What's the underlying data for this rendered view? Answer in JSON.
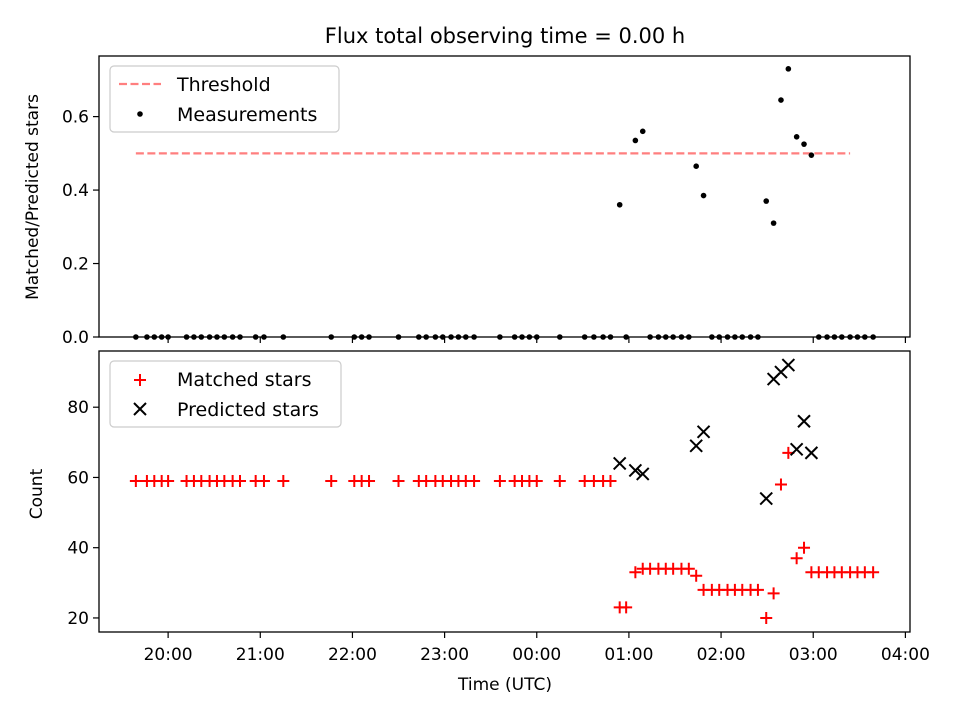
{
  "title": "Flux total observing time = 0.00 h",
  "colors": {
    "threshold": "#ff7f7f",
    "measurement": "#000000",
    "matched": "#ff0000",
    "predicted": "#000000"
  },
  "chart_data": [
    {
      "type": "scatter",
      "ylabel": "Matched/Predicted stars",
      "ylim": [
        0,
        0.765
      ],
      "yticks": [
        "0.0",
        "0.2",
        "0.4",
        "0.6"
      ],
      "legend_position": "upper-left",
      "threshold": {
        "name": "Threshold",
        "value": 0.5,
        "x_range": [
          -0.35,
          7.4
        ]
      },
      "series": [
        {
          "name": "Measurements",
          "marker": "dot",
          "points": [
            [
              -0.35,
              0
            ],
            [
              -0.23,
              0
            ],
            [
              -0.15,
              0
            ],
            [
              -0.07,
              0
            ],
            [
              0.0,
              0
            ],
            [
              0.2,
              0
            ],
            [
              0.28,
              0
            ],
            [
              0.36,
              0
            ],
            [
              0.45,
              0
            ],
            [
              0.53,
              0
            ],
            [
              0.61,
              0
            ],
            [
              0.7,
              0
            ],
            [
              0.78,
              0
            ],
            [
              0.95,
              0
            ],
            [
              1.04,
              0
            ],
            [
              1.25,
              0
            ],
            [
              1.77,
              0
            ],
            [
              2.02,
              0
            ],
            [
              2.1,
              0
            ],
            [
              2.18,
              0
            ],
            [
              2.5,
              0
            ],
            [
              2.72,
              0
            ],
            [
              2.8,
              0
            ],
            [
              2.9,
              0
            ],
            [
              2.98,
              0
            ],
            [
              3.07,
              0
            ],
            [
              3.15,
              0
            ],
            [
              3.23,
              0
            ],
            [
              3.32,
              0
            ],
            [
              3.6,
              0
            ],
            [
              3.76,
              0
            ],
            [
              3.84,
              0
            ],
            [
              3.92,
              0
            ],
            [
              4.0,
              0
            ],
            [
              4.25,
              0
            ],
            [
              4.52,
              0
            ],
            [
              4.62,
              0
            ],
            [
              4.72,
              0
            ],
            [
              4.8,
              0
            ],
            [
              4.9,
              0.36
            ],
            [
              4.97,
              0
            ],
            [
              5.07,
              0.535
            ],
            [
              5.15,
              0.56
            ],
            [
              5.23,
              0
            ],
            [
              5.32,
              0
            ],
            [
              5.4,
              0
            ],
            [
              5.48,
              0
            ],
            [
              5.57,
              0
            ],
            [
              5.65,
              0
            ],
            [
              5.73,
              0.465
            ],
            [
              5.81,
              0.385
            ],
            [
              5.9,
              0
            ],
            [
              5.98,
              0
            ],
            [
              6.07,
              0
            ],
            [
              6.15,
              0
            ],
            [
              6.23,
              0
            ],
            [
              6.32,
              0
            ],
            [
              6.4,
              0
            ],
            [
              6.49,
              0.37
            ],
            [
              6.57,
              0.31
            ],
            [
              6.65,
              0.645
            ],
            [
              6.73,
              0.73
            ],
            [
              6.82,
              0.545
            ],
            [
              6.9,
              0.525
            ],
            [
              6.98,
              0.495
            ],
            [
              7.06,
              0
            ],
            [
              7.15,
              0
            ],
            [
              7.23,
              0
            ],
            [
              7.31,
              0
            ],
            [
              7.4,
              0
            ],
            [
              7.48,
              0
            ],
            [
              7.56,
              0
            ],
            [
              7.65,
              0
            ]
          ]
        }
      ]
    },
    {
      "type": "scatter",
      "xlabel": "Time (UTC)",
      "ylabel": "Count",
      "ylim": [
        16,
        96
      ],
      "yticks": [
        "20",
        "40",
        "60",
        "80"
      ],
      "xlim": [
        -0.75,
        8.05
      ],
      "xticks": [
        {
          "label": "20:00",
          "value": 0
        },
        {
          "label": "21:00",
          "value": 1
        },
        {
          "label": "22:00",
          "value": 2
        },
        {
          "label": "23:00",
          "value": 3
        },
        {
          "label": "00:00",
          "value": 4
        },
        {
          "label": "01:00",
          "value": 5
        },
        {
          "label": "02:00",
          "value": 6
        },
        {
          "label": "03:00",
          "value": 7
        },
        {
          "label": "04:00",
          "value": 8
        }
      ],
      "legend_position": "upper-left",
      "series": [
        {
          "name": "Matched stars",
          "marker": "plus",
          "points": [
            [
              -0.35,
              59
            ],
            [
              -0.23,
              59
            ],
            [
              -0.15,
              59
            ],
            [
              -0.07,
              59
            ],
            [
              0.0,
              59
            ],
            [
              0.2,
              59
            ],
            [
              0.28,
              59
            ],
            [
              0.36,
              59
            ],
            [
              0.45,
              59
            ],
            [
              0.53,
              59
            ],
            [
              0.61,
              59
            ],
            [
              0.7,
              59
            ],
            [
              0.78,
              59
            ],
            [
              0.95,
              59
            ],
            [
              1.04,
              59
            ],
            [
              1.25,
              59
            ],
            [
              1.77,
              59
            ],
            [
              2.02,
              59
            ],
            [
              2.1,
              59
            ],
            [
              2.18,
              59
            ],
            [
              2.5,
              59
            ],
            [
              2.72,
              59
            ],
            [
              2.8,
              59
            ],
            [
              2.9,
              59
            ],
            [
              2.98,
              59
            ],
            [
              3.07,
              59
            ],
            [
              3.15,
              59
            ],
            [
              3.23,
              59
            ],
            [
              3.32,
              59
            ],
            [
              3.6,
              59
            ],
            [
              3.76,
              59
            ],
            [
              3.84,
              59
            ],
            [
              3.92,
              59
            ],
            [
              4.0,
              59
            ],
            [
              4.25,
              59
            ],
            [
              4.52,
              59
            ],
            [
              4.62,
              59
            ],
            [
              4.72,
              59
            ],
            [
              4.8,
              59
            ],
            [
              4.9,
              23
            ],
            [
              4.97,
              23
            ],
            [
              5.07,
              33
            ],
            [
              5.15,
              34
            ],
            [
              5.23,
              34
            ],
            [
              5.32,
              34
            ],
            [
              5.4,
              34
            ],
            [
              5.48,
              34
            ],
            [
              5.57,
              34
            ],
            [
              5.65,
              34
            ],
            [
              5.73,
              32
            ],
            [
              5.81,
              28
            ],
            [
              5.9,
              28
            ],
            [
              5.98,
              28
            ],
            [
              6.07,
              28
            ],
            [
              6.15,
              28
            ],
            [
              6.23,
              28
            ],
            [
              6.32,
              28
            ],
            [
              6.4,
              28
            ],
            [
              6.49,
              20
            ],
            [
              6.57,
              27
            ],
            [
              6.65,
              58
            ],
            [
              6.73,
              67
            ],
            [
              6.82,
              37
            ],
            [
              6.9,
              40
            ],
            [
              6.98,
              33
            ],
            [
              7.06,
              33
            ],
            [
              7.15,
              33
            ],
            [
              7.23,
              33
            ],
            [
              7.31,
              33
            ],
            [
              7.4,
              33
            ],
            [
              7.48,
              33
            ],
            [
              7.56,
              33
            ],
            [
              7.65,
              33
            ]
          ]
        },
        {
          "name": "Predicted stars",
          "marker": "x",
          "points": [
            [
              4.9,
              64
            ],
            [
              5.07,
              62
            ],
            [
              5.15,
              61
            ],
            [
              5.73,
              69
            ],
            [
              5.81,
              73
            ],
            [
              6.49,
              54
            ],
            [
              6.57,
              88
            ],
            [
              6.65,
              90
            ],
            [
              6.73,
              92
            ],
            [
              6.82,
              68
            ],
            [
              6.9,
              76
            ],
            [
              6.98,
              67
            ]
          ]
        }
      ]
    }
  ]
}
